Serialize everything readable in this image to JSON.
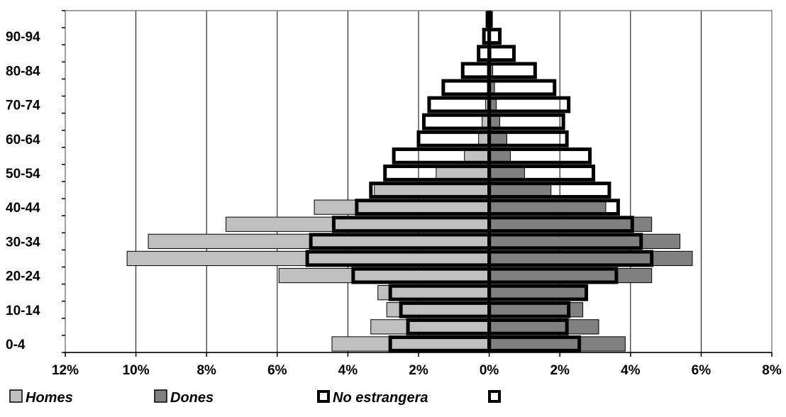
{
  "chart_data": {
    "type": "bar",
    "orientation": "horizontal-population-pyramid",
    "categories": [
      "0-4",
      "5-9",
      "10-14",
      "15-19",
      "20-24",
      "25-29",
      "30-34",
      "35-39",
      "40-44",
      "45-49",
      "50-54",
      "55-59",
      "60-64",
      "65-69",
      "70-74",
      "75-79",
      "80-84",
      "85-89",
      "90-94",
      "95+"
    ],
    "y_tick_labels": [
      "0-4",
      "10-14",
      "20-24",
      "30-34",
      "40-44",
      "50-54",
      "60-64",
      "70-74",
      "80-84",
      "90-94"
    ],
    "x_tick_labels": [
      "12%",
      "10%",
      "8%",
      "6%",
      "4%",
      "2%",
      "0%",
      "2%",
      "4%",
      "6%",
      "8%"
    ],
    "xlim": [
      -12,
      8
    ],
    "x_unit": "%",
    "grid": true,
    "legend_position": "bottom",
    "series": [
      {
        "name": "Homes",
        "side": "left",
        "color": "#c0c0c0",
        "values": [
          4.45,
          3.35,
          2.9,
          3.15,
          5.95,
          10.25,
          9.65,
          7.45,
          4.95,
          3.25,
          1.5,
          0.7,
          0.3,
          0.2,
          0.1,
          0.05,
          0.05,
          0.02,
          0.01,
          0.01
        ]
      },
      {
        "name": "Dones",
        "side": "right",
        "color": "#808080",
        "values": [
          3.85,
          3.1,
          2.65,
          2.75,
          4.6,
          5.75,
          5.4,
          4.6,
          3.3,
          1.75,
          1.0,
          0.6,
          0.5,
          0.3,
          0.2,
          0.15,
          0.1,
          0.05,
          0.02,
          0.01
        ]
      },
      {
        "name": "No estrangera",
        "side": "left",
        "outline": true,
        "color": "#000000",
        "values": [
          2.8,
          2.3,
          2.5,
          2.8,
          3.85,
          5.15,
          5.05,
          4.4,
          3.75,
          3.35,
          2.95,
          2.7,
          2.0,
          1.85,
          1.7,
          1.3,
          0.75,
          0.3,
          0.15,
          0.05
        ]
      },
      {
        "name": "",
        "side": "right",
        "outline": true,
        "color": "#000000",
        "values": [
          2.55,
          2.2,
          2.25,
          2.75,
          3.6,
          4.6,
          4.3,
          4.05,
          3.65,
          3.4,
          2.95,
          2.85,
          2.2,
          2.1,
          2.25,
          1.85,
          1.3,
          0.7,
          0.3,
          0.05
        ]
      }
    ]
  }
}
